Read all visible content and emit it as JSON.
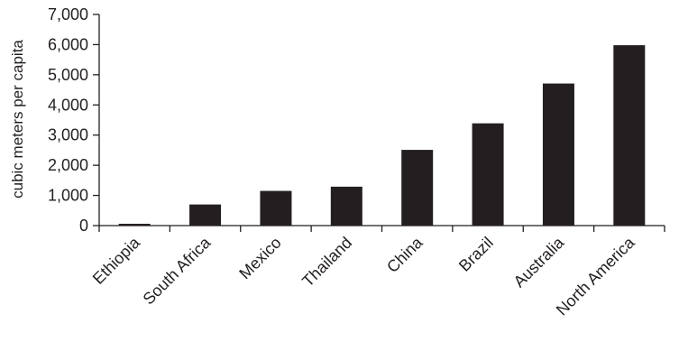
{
  "chart_data": {
    "type": "bar",
    "title": "",
    "xlabel": "",
    "ylabel": "cubic meters per capita",
    "categories": [
      "Ethiopia",
      "South Africa",
      "Mexico",
      "Thailand",
      "China",
      "Brazil",
      "Australia",
      "North America"
    ],
    "values": [
      60,
      700,
      1150,
      1290,
      2510,
      3390,
      4710,
      5980
    ],
    "ylim": [
      0,
      7000
    ],
    "yticks": [
      0,
      1000,
      2000,
      3000,
      4000,
      5000,
      6000,
      7000
    ],
    "ytick_labels": [
      "0",
      "1,000",
      "2,000",
      "3,000",
      "4,000",
      "5,000",
      "6,000",
      "7,000"
    ],
    "grid": false,
    "legend": "none",
    "bar_color": "#231f20"
  }
}
